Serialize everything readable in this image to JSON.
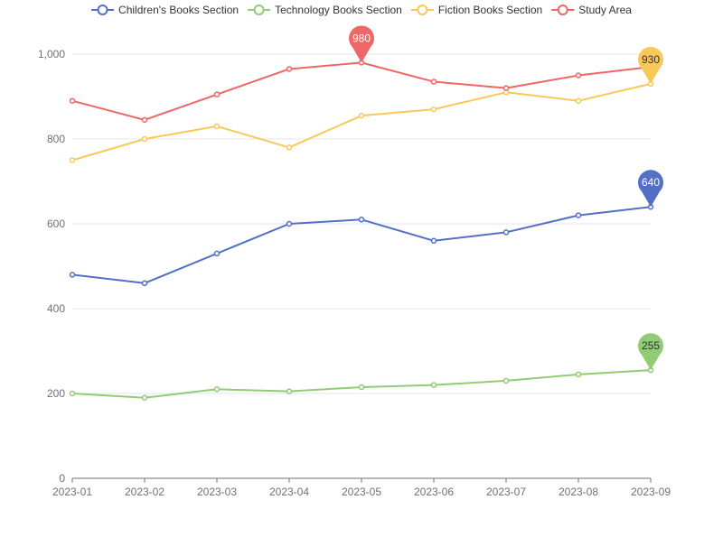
{
  "chart_data": {
    "type": "line",
    "categories": [
      "2023-01",
      "2023-02",
      "2023-03",
      "2023-04",
      "2023-05",
      "2023-06",
      "2023-07",
      "2023-08",
      "2023-09"
    ],
    "ylim": [
      0,
      1000
    ],
    "y_ticks": [
      0,
      200,
      400,
      600,
      800,
      1000
    ],
    "y_tick_labels": [
      "0",
      "200",
      "400",
      "600",
      "800",
      "1,000"
    ],
    "grid": "horizontal",
    "legend_position": "top",
    "series": [
      {
        "name": "Children's Books Section",
        "color": "#5470c6",
        "values": [
          480,
          460,
          530,
          600,
          610,
          560,
          580,
          620,
          640
        ],
        "max_marker": {
          "index": 8,
          "label": "640"
        }
      },
      {
        "name": "Technology Books Section",
        "color": "#91cc75",
        "values": [
          200,
          190,
          210,
          205,
          215,
          220,
          230,
          245,
          255
        ],
        "max_marker": {
          "index": 8,
          "label": "255"
        }
      },
      {
        "name": "Fiction Books Section",
        "color": "#fac858",
        "values": [
          750,
          800,
          830,
          780,
          855,
          870,
          910,
          890,
          930
        ],
        "max_marker": {
          "index": 8,
          "label": "930"
        }
      },
      {
        "name": "Study Area",
        "color": "#ee6666",
        "values": [
          890,
          845,
          905,
          965,
          980,
          935,
          920,
          950,
          970
        ],
        "max_marker": {
          "index": 4,
          "label": "980"
        }
      }
    ]
  }
}
